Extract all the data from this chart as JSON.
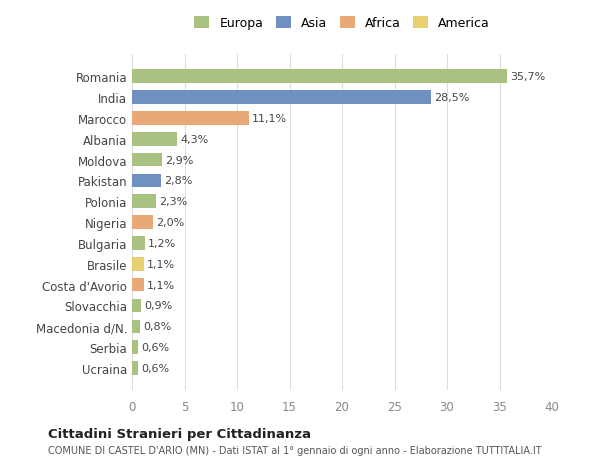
{
  "countries": [
    "Romania",
    "India",
    "Marocco",
    "Albania",
    "Moldova",
    "Pakistan",
    "Polonia",
    "Nigeria",
    "Bulgaria",
    "Brasile",
    "Costa d'Avorio",
    "Slovacchia",
    "Macedonia d/N.",
    "Serbia",
    "Ucraina"
  ],
  "values": [
    35.7,
    28.5,
    11.1,
    4.3,
    2.9,
    2.8,
    2.3,
    2.0,
    1.2,
    1.1,
    1.1,
    0.9,
    0.8,
    0.6,
    0.6
  ],
  "labels": [
    "35,7%",
    "28,5%",
    "11,1%",
    "4,3%",
    "2,9%",
    "2,8%",
    "2,3%",
    "2,0%",
    "1,2%",
    "1,1%",
    "1,1%",
    "0,9%",
    "0,8%",
    "0,6%",
    "0,6%"
  ],
  "continents": [
    "Europa",
    "Asia",
    "Africa",
    "Europa",
    "Europa",
    "Asia",
    "Europa",
    "Africa",
    "Europa",
    "America",
    "Africa",
    "Europa",
    "Europa",
    "Europa",
    "Europa"
  ],
  "colors": {
    "Europa": "#a8c080",
    "Asia": "#7090c0",
    "Africa": "#e8a878",
    "America": "#e8d070"
  },
  "legend_order": [
    "Europa",
    "Asia",
    "Africa",
    "America"
  ],
  "title": "Cittadini Stranieri per Cittadinanza",
  "subtitle": "COMUNE DI CASTEL D'ARIO (MN) - Dati ISTAT al 1° gennaio di ogni anno - Elaborazione TUTTITALIA.IT",
  "xlim": [
    0,
    40
  ],
  "xticks": [
    0,
    5,
    10,
    15,
    20,
    25,
    30,
    35,
    40
  ],
  "bg_color": "#ffffff",
  "grid_color": "#dddddd"
}
